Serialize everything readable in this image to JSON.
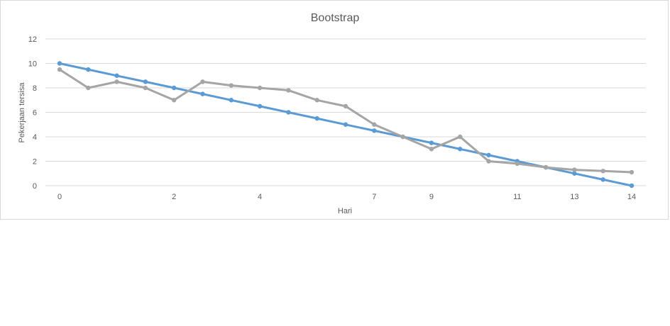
{
  "chart_data": {
    "type": "line",
    "title": "Bootstrap",
    "xlabel": "Hari",
    "ylabel": "Pekerjaan tersisa",
    "ylim": [
      0,
      12
    ],
    "yticks": [
      "0",
      "2",
      "4",
      "6",
      "8",
      "10",
      "12"
    ],
    "x_tick_labels": [
      {
        "index": 0,
        "label": "0"
      },
      {
        "index": 4,
        "label": "2"
      },
      {
        "index": 7,
        "label": "4"
      },
      {
        "index": 11,
        "label": "7"
      },
      {
        "index": 13,
        "label": "9"
      },
      {
        "index": 16,
        "label": "11"
      },
      {
        "index": 18,
        "label": "13"
      },
      {
        "index": 20,
        "label": "14"
      }
    ],
    "point_count": 21,
    "grid": true,
    "legend": "none",
    "series": [
      {
        "color": "#5b9bd5",
        "values": [
          10,
          9.5,
          9,
          8.5,
          8,
          7.5,
          7,
          6.5,
          6,
          5.5,
          5,
          4.5,
          4,
          3.5,
          3,
          2.5,
          2,
          1.5,
          1,
          0.5,
          0
        ]
      },
      {
        "color": "#a5a5a5",
        "values": [
          9.5,
          8,
          8.5,
          8,
          7,
          8.5,
          8.2,
          8,
          7.8,
          7,
          6.5,
          5,
          4,
          3,
          4,
          2,
          1.8,
          1.5,
          1.3,
          1.2,
          1.1
        ]
      }
    ]
  }
}
